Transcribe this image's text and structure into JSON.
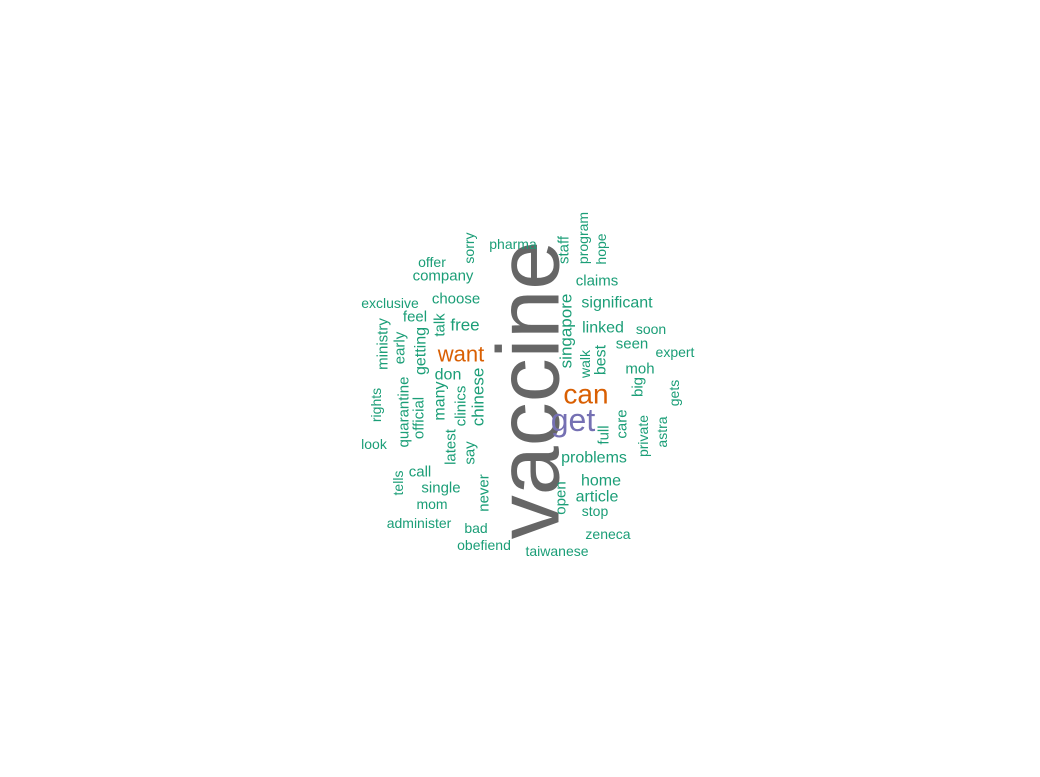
{
  "colors": {
    "teal": "#1b9e77",
    "orange": "#d95f02",
    "purple": "#7570b3",
    "gray": "#666666"
  },
  "words": [
    {
      "text": "vaccine",
      "freq": 100,
      "color": "gray"
    },
    {
      "text": "get",
      "freq": 22,
      "color": "purple"
    },
    {
      "text": "can",
      "freq": 20,
      "color": "orange"
    },
    {
      "text": "want",
      "freq": 16,
      "color": "orange"
    },
    {
      "text": "singapore",
      "freq": 9,
      "color": "teal"
    },
    {
      "text": "chinese",
      "freq": 9,
      "color": "teal"
    },
    {
      "text": "free",
      "freq": 8,
      "color": "teal"
    },
    {
      "text": "significant",
      "freq": 8,
      "color": "teal"
    },
    {
      "text": "linked",
      "freq": 8,
      "color": "teal"
    },
    {
      "text": "problems",
      "freq": 8,
      "color": "teal"
    },
    {
      "text": "getting",
      "freq": 8,
      "color": "teal"
    },
    {
      "text": "best",
      "freq": 8,
      "color": "teal"
    },
    {
      "text": "don",
      "freq": 8,
      "color": "teal"
    },
    {
      "text": "many",
      "freq": 8,
      "color": "teal"
    },
    {
      "text": "home",
      "freq": 8,
      "color": "teal"
    },
    {
      "text": "article",
      "freq": 8,
      "color": "teal"
    },
    {
      "text": "company",
      "freq": 7,
      "color": "teal"
    },
    {
      "text": "choose",
      "freq": 7,
      "color": "teal"
    },
    {
      "text": "claims",
      "freq": 7,
      "color": "teal"
    },
    {
      "text": "seen",
      "freq": 7,
      "color": "teal"
    },
    {
      "text": "moh",
      "freq": 7,
      "color": "teal"
    },
    {
      "text": "care",
      "freq": 7,
      "color": "teal"
    },
    {
      "text": "full",
      "freq": 7,
      "color": "teal"
    },
    {
      "text": "big",
      "freq": 7,
      "color": "teal"
    },
    {
      "text": "official",
      "freq": 7,
      "color": "teal"
    },
    {
      "text": "quarantine",
      "freq": 7,
      "color": "teal"
    },
    {
      "text": "early",
      "freq": 7,
      "color": "teal"
    },
    {
      "text": "feel",
      "freq": 7,
      "color": "teal"
    },
    {
      "text": "talk",
      "freq": 7,
      "color": "teal"
    },
    {
      "text": "latest",
      "freq": 7,
      "color": "teal"
    },
    {
      "text": "clinics",
      "freq": 7,
      "color": "teal"
    },
    {
      "text": "say",
      "freq": 7,
      "color": "teal"
    },
    {
      "text": "never",
      "freq": 7,
      "color": "teal"
    },
    {
      "text": "open",
      "freq": 7,
      "color": "teal"
    },
    {
      "text": "single",
      "freq": 7,
      "color": "teal"
    },
    {
      "text": "call",
      "freq": 7,
      "color": "teal"
    },
    {
      "text": "staff",
      "freq": 7,
      "color": "teal"
    },
    {
      "text": "ministry",
      "freq": 7,
      "color": "teal"
    },
    {
      "text": "private",
      "freq": 6,
      "color": "teal"
    },
    {
      "text": "sorry",
      "freq": 6,
      "color": "teal"
    },
    {
      "text": "pharma",
      "freq": 5,
      "color": "teal"
    },
    {
      "text": "offer",
      "freq": 5,
      "color": "teal"
    },
    {
      "text": "exclusive",
      "freq": 5,
      "color": "teal"
    },
    {
      "text": "program",
      "freq": 5,
      "color": "teal"
    },
    {
      "text": "hope",
      "freq": 5,
      "color": "teal"
    },
    {
      "text": "soon",
      "freq": 5,
      "color": "teal"
    },
    {
      "text": "expert",
      "freq": 5,
      "color": "teal"
    },
    {
      "text": "walk",
      "freq": 5,
      "color": "teal"
    },
    {
      "text": "gets",
      "freq": 5,
      "color": "teal"
    },
    {
      "text": "astra",
      "freq": 5,
      "color": "teal"
    },
    {
      "text": "rights",
      "freq": 5,
      "color": "teal"
    },
    {
      "text": "look",
      "freq": 5,
      "color": "teal"
    },
    {
      "text": "tells",
      "freq": 5,
      "color": "teal"
    },
    {
      "text": "mom",
      "freq": 5,
      "color": "teal"
    },
    {
      "text": "administer",
      "freq": 5,
      "color": "teal"
    },
    {
      "text": "bad",
      "freq": 5,
      "color": "teal"
    },
    {
      "text": "obefiend",
      "freq": 5,
      "color": "teal"
    },
    {
      "text": "taiwanese",
      "freq": 5,
      "color": "teal"
    },
    {
      "text": "zeneca",
      "freq": 5,
      "color": "teal"
    },
    {
      "text": "stop",
      "freq": 5,
      "color": "teal"
    }
  ]
}
